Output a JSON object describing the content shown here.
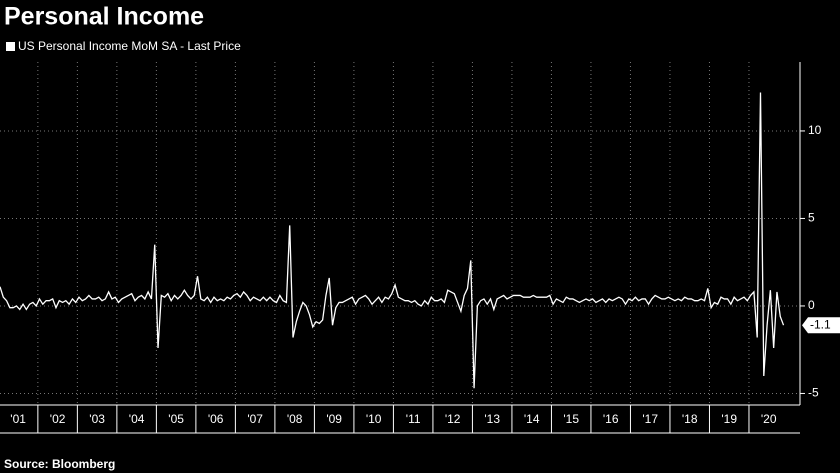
{
  "chart_data": {
    "type": "line",
    "title": "Personal Income",
    "source": "Source: Bloomberg",
    "series": [
      {
        "name": "US Personal Income MoM SA - Last Price",
        "color": "#ffffff",
        "values": [
          1.1,
          0.5,
          0.3,
          -0.1,
          -0.1,
          0.0,
          -0.2,
          0.1,
          -0.2,
          0.1,
          0.2,
          0.0,
          0.4,
          0.1,
          0.3,
          0.3,
          0.4,
          -0.1,
          0.3,
          0.2,
          0.3,
          0.1,
          0.4,
          0.2,
          0.5,
          0.3,
          0.4,
          0.6,
          0.4,
          0.4,
          0.5,
          0.3,
          0.4,
          0.8,
          0.4,
          0.5,
          0.2,
          0.4,
          0.5,
          0.6,
          0.7,
          0.3,
          0.5,
          0.6,
          0.4,
          0.8,
          0.4,
          3.5,
          -2.4,
          0.6,
          0.5,
          0.7,
          0.3,
          0.6,
          0.4,
          0.6,
          0.9,
          0.6,
          0.4,
          0.6,
          1.7,
          0.4,
          0.3,
          0.5,
          0.2,
          0.5,
          0.3,
          0.4,
          0.3,
          0.5,
          0.4,
          0.6,
          0.7,
          0.5,
          0.8,
          0.6,
          0.3,
          0.5,
          0.4,
          0.3,
          0.5,
          0.3,
          0.5,
          0.3,
          0.2,
          0.6,
          0.3,
          0.2,
          4.6,
          -1.8,
          -0.9,
          -0.3,
          0.2,
          0.0,
          -0.5,
          -1.2,
          -0.9,
          -1.0,
          -0.8,
          0.6,
          1.6,
          -1.1,
          -0.1,
          0.2,
          0.2,
          0.3,
          0.4,
          0.5,
          0.1,
          0.4,
          0.5,
          0.6,
          0.4,
          0.1,
          0.3,
          0.5,
          0.2,
          0.5,
          0.4,
          0.7,
          1.2,
          0.5,
          0.4,
          0.3,
          0.3,
          0.2,
          0.3,
          0.1,
          0.0,
          0.3,
          0.1,
          0.5,
          0.3,
          0.3,
          0.4,
          0.2,
          0.9,
          0.8,
          0.7,
          0.2,
          -0.3,
          0.6,
          1.0,
          2.6,
          -4.7,
          0.0,
          0.3,
          0.4,
          0.1,
          0.4,
          -0.2,
          0.4,
          0.5,
          0.6,
          0.4,
          0.5,
          0.6,
          0.6,
          0.6,
          0.5,
          0.5,
          0.5,
          0.6,
          0.5,
          0.5,
          0.5,
          0.5,
          0.6,
          0.1,
          0.4,
          0.3,
          0.2,
          0.5,
          0.4,
          0.4,
          0.3,
          0.2,
          0.3,
          0.4,
          0.3,
          0.4,
          0.2,
          0.3,
          0.4,
          0.2,
          0.4,
          0.3,
          0.4,
          0.5,
          0.4,
          0.1,
          0.4,
          0.3,
          0.5,
          0.3,
          0.4,
          0.4,
          0.1,
          0.4,
          0.6,
          0.5,
          0.4,
          0.4,
          0.5,
          0.4,
          0.3,
          0.4,
          0.3,
          0.5,
          0.4,
          0.4,
          0.3,
          0.3,
          0.4,
          0.3,
          1.0,
          -0.1,
          0.2,
          0.1,
          0.5,
          0.4,
          0.4,
          0.1,
          0.5,
          0.3,
          0.4,
          0.5,
          0.3,
          0.6,
          0.8,
          -1.8,
          12.2,
          -4.0,
          -1.1,
          0.9,
          -2.4,
          0.8,
          -0.6,
          -1.1
        ]
      }
    ],
    "xlim": [
      0,
      243
    ],
    "xticks": [
      {
        "value": 5.5,
        "label": "'01"
      },
      {
        "value": 17.5,
        "label": "'02"
      },
      {
        "value": 29.5,
        "label": "'03"
      },
      {
        "value": 41.5,
        "label": "'04"
      },
      {
        "value": 53.5,
        "label": "'05"
      },
      {
        "value": 65.5,
        "label": "'06"
      },
      {
        "value": 77.5,
        "label": "'07"
      },
      {
        "value": 89.5,
        "label": "'08"
      },
      {
        "value": 101.5,
        "label": "'09"
      },
      {
        "value": 113.5,
        "label": "'10"
      },
      {
        "value": 125.5,
        "label": "'11"
      },
      {
        "value": 137.5,
        "label": "'12"
      },
      {
        "value": 149.5,
        "label": "'13"
      },
      {
        "value": 161.5,
        "label": "'14"
      },
      {
        "value": 173.5,
        "label": "'15"
      },
      {
        "value": 185.5,
        "label": "'16"
      },
      {
        "value": 197.5,
        "label": "'17"
      },
      {
        "value": 209.5,
        "label": "'18"
      },
      {
        "value": 221.5,
        "label": "'19"
      },
      {
        "value": 233.5,
        "label": "'20"
      }
    ],
    "ylim": [
      -5.66,
      13.94
    ],
    "yticks": [
      -5,
      0,
      5,
      10
    ],
    "grid": true
  }
}
